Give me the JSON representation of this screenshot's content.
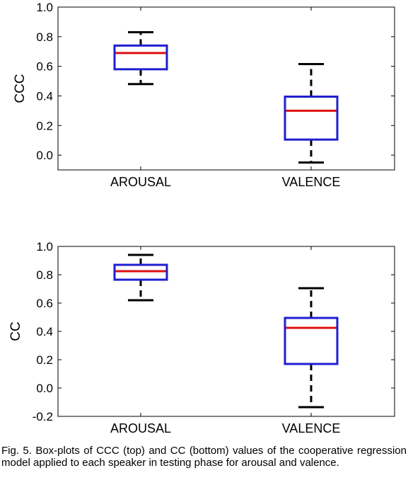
{
  "chart_data": [
    {
      "type": "box",
      "title": "",
      "xlabel": "",
      "ylabel": "CCC",
      "ylim": [
        -0.1,
        1.0
      ],
      "yticks": [
        1.0,
        0.8,
        0.6,
        0.4,
        0.2,
        0.0
      ],
      "ytick_labels": [
        "1.0",
        "0.8",
        "0.6",
        "0.4",
        "0.2",
        "0.0"
      ],
      "categories": [
        "AROUSAL",
        "VALENCE"
      ],
      "boxes": [
        {
          "whisker_low": 0.48,
          "q1": 0.58,
          "median": 0.69,
          "q3": 0.74,
          "whisker_high": 0.83
        },
        {
          "whisker_low": -0.05,
          "q1": 0.105,
          "median": 0.3,
          "q3": 0.395,
          "whisker_high": 0.615
        }
      ],
      "grid": false
    },
    {
      "type": "box",
      "title": "",
      "xlabel": "",
      "ylabel": "CC",
      "ylim": [
        -0.2,
        1.0
      ],
      "yticks": [
        1.0,
        0.8,
        0.6,
        0.4,
        0.2,
        0.0,
        -0.2
      ],
      "ytick_labels": [
        "1.0",
        "0.8",
        "0.6",
        "0.4",
        "0.2",
        "0.0",
        "-0.2"
      ],
      "categories": [
        "AROUSAL",
        "VALENCE"
      ],
      "boxes": [
        {
          "whisker_low": 0.62,
          "q1": 0.765,
          "median": 0.825,
          "q3": 0.87,
          "whisker_high": 0.94
        },
        {
          "whisker_low": -0.135,
          "q1": 0.17,
          "median": 0.425,
          "q3": 0.495,
          "whisker_high": 0.705
        }
      ],
      "grid": false
    }
  ],
  "colors": {
    "box": "#1f1fd0",
    "median": "#e01010",
    "whisker": "#000000"
  },
  "caption": "Fig. 5. Box-plots of CCC (top) and CC (bottom) values of the cooperative regression model applied to each speaker in testing phase for arousal and valence."
}
